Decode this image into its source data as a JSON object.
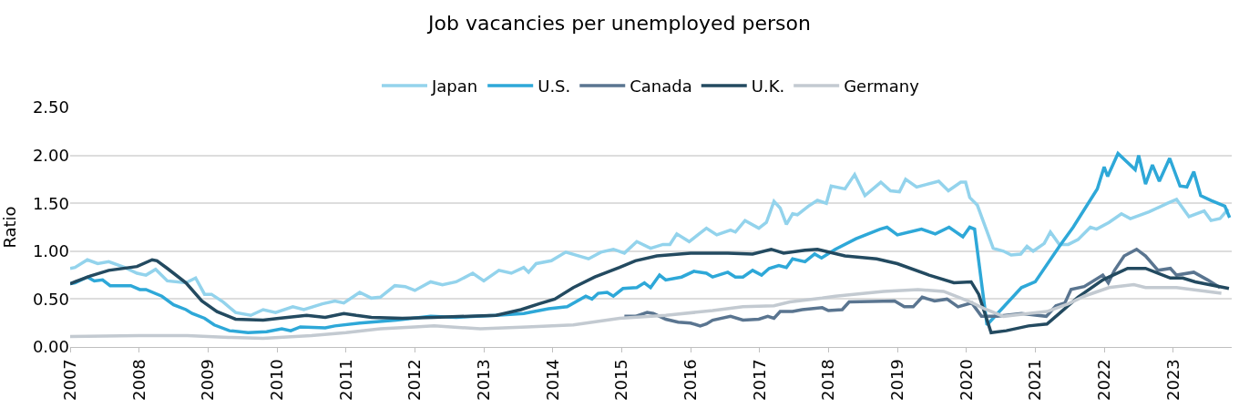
{
  "chart_data": {
    "type": "line",
    "title": "Job vacancies per unemployed person",
    "ylabel": "Ratio",
    "xlim": [
      2007,
      2023.85
    ],
    "xticks": [
      2007,
      2008,
      2009,
      2010,
      2011,
      2012,
      2013,
      2014,
      2015,
      2016,
      2017,
      2018,
      2019,
      2020,
      2021,
      2022,
      2023
    ],
    "ylim": [
      0,
      2.5
    ],
    "yticks": [
      {
        "value": 0,
        "label": "0.00"
      },
      {
        "value": 0.5,
        "label": "0.50"
      },
      {
        "value": 1,
        "label": "1.00"
      },
      {
        "value": 1.5,
        "label": "1.50"
      },
      {
        "value": 2,
        "label": "2.00"
      },
      {
        "value": 2.5,
        "label": "2.50"
      }
    ],
    "grid": "y",
    "legend": "top",
    "marker": "none",
    "line_style": "solid",
    "series": [
      {
        "name": "Japan",
        "color": "#93d3ec",
        "x": [
          2007.0,
          2007.07,
          2007.25,
          2007.4,
          2007.56,
          2007.79,
          2007.97,
          2008.1,
          2008.24,
          2008.41,
          2008.68,
          2008.82,
          2008.95,
          2009.05,
          2009.22,
          2009.4,
          2009.62,
          2009.8,
          2009.98,
          2010.23,
          2010.39,
          2010.66,
          2010.84,
          2010.97,
          2011.2,
          2011.37,
          2011.5,
          2011.71,
          2011.86,
          2012.0,
          2012.23,
          2012.4,
          2012.6,
          2012.84,
          2013.0,
          2013.22,
          2013.4,
          2013.58,
          2013.65,
          2013.76,
          2013.98,
          2014.19,
          2014.52,
          2014.7,
          2014.88,
          2015.04,
          2015.22,
          2015.42,
          2015.6,
          2015.7,
          2015.8,
          2015.98,
          2016.23,
          2016.38,
          2016.58,
          2016.65,
          2016.79,
          2016.99,
          2017.1,
          2017.21,
          2017.3,
          2017.39,
          2017.48,
          2017.55,
          2017.71,
          2017.84,
          2017.97,
          2018.04,
          2018.24,
          2018.38,
          2018.53,
          2018.76,
          2018.9,
          2019.03,
          2019.12,
          2019.28,
          2019.6,
          2019.74,
          2019.92,
          2019.99,
          2020.05,
          2020.16,
          2020.39,
          2020.54,
          2020.65,
          2020.79,
          2020.88,
          2020.97,
          2021.13,
          2021.22,
          2021.35,
          2021.48,
          2021.62,
          2021.8,
          2021.89,
          2022.07,
          2022.25,
          2022.38,
          2022.65,
          2022.92,
          2023.05,
          2023.23,
          2023.45,
          2023.55,
          2023.68,
          2023.8
        ],
        "values": [
          0.82,
          0.83,
          0.91,
          0.87,
          0.89,
          0.83,
          0.77,
          0.75,
          0.81,
          0.69,
          0.67,
          0.72,
          0.55,
          0.55,
          0.47,
          0.36,
          0.33,
          0.39,
          0.36,
          0.42,
          0.39,
          0.45,
          0.48,
          0.46,
          0.57,
          0.51,
          0.52,
          0.64,
          0.63,
          0.59,
          0.68,
          0.65,
          0.68,
          0.77,
          0.69,
          0.8,
          0.77,
          0.83,
          0.78,
          0.87,
          0.9,
          0.99,
          0.92,
          0.99,
          1.02,
          0.98,
          1.1,
          1.03,
          1.07,
          1.07,
          1.18,
          1.1,
          1.24,
          1.17,
          1.22,
          1.2,
          1.32,
          1.24,
          1.3,
          1.52,
          1.45,
          1.28,
          1.39,
          1.38,
          1.47,
          1.53,
          1.5,
          1.68,
          1.65,
          1.8,
          1.58,
          1.72,
          1.63,
          1.62,
          1.75,
          1.67,
          1.73,
          1.63,
          1.72,
          1.72,
          1.56,
          1.48,
          1.03,
          1.0,
          0.96,
          0.97,
          1.05,
          1.0,
          1.08,
          1.2,
          1.07,
          1.07,
          1.12,
          1.25,
          1.23,
          1.3,
          1.39,
          1.34,
          1.41,
          1.5,
          1.54,
          1.36,
          1.42,
          1.32,
          1.34,
          1.44
        ]
      },
      {
        "name": "U.S.",
        "color": "#2ea8d8",
        "x": [
          2007.0,
          2007.07,
          2007.25,
          2007.35,
          2007.47,
          2007.58,
          2007.88,
          2008.01,
          2008.1,
          2008.33,
          2008.5,
          2008.68,
          2008.77,
          2008.95,
          2009.09,
          2009.31,
          2009.58,
          2009.85,
          2010.07,
          2010.2,
          2010.34,
          2010.7,
          2010.84,
          2011.2,
          2011.73,
          2012.23,
          2012.6,
          2013.18,
          2013.58,
          2013.94,
          2014.21,
          2014.48,
          2014.57,
          2014.66,
          2014.79,
          2014.88,
          2015.02,
          2015.22,
          2015.33,
          2015.42,
          2015.55,
          2015.64,
          2015.87,
          2016.05,
          2016.23,
          2016.32,
          2016.54,
          2016.65,
          2016.76,
          2016.9,
          2017.03,
          2017.14,
          2017.28,
          2017.39,
          2017.48,
          2017.66,
          2017.8,
          2017.9,
          2018.1,
          2018.4,
          2018.75,
          2018.85,
          2019.0,
          2019.35,
          2019.55,
          2019.75,
          2019.95,
          2020.05,
          2020.12,
          2020.3,
          2020.8,
          2021.0,
          2021.35,
          2021.55,
          2021.9,
          2022.0,
          2022.05,
          2022.2,
          2022.45,
          2022.5,
          2022.6,
          2022.7,
          2022.8,
          2022.95,
          2023.1,
          2023.2,
          2023.3,
          2023.4,
          2023.55,
          2023.75,
          2023.82
        ],
        "values": [
          0.66,
          0.67,
          0.73,
          0.69,
          0.7,
          0.64,
          0.64,
          0.6,
          0.6,
          0.53,
          0.44,
          0.39,
          0.35,
          0.3,
          0.23,
          0.17,
          0.15,
          0.16,
          0.19,
          0.17,
          0.21,
          0.2,
          0.22,
          0.25,
          0.28,
          0.32,
          0.31,
          0.33,
          0.35,
          0.4,
          0.42,
          0.53,
          0.5,
          0.56,
          0.57,
          0.53,
          0.61,
          0.62,
          0.67,
          0.62,
          0.75,
          0.7,
          0.73,
          0.79,
          0.77,
          0.73,
          0.78,
          0.73,
          0.73,
          0.8,
          0.75,
          0.82,
          0.85,
          0.83,
          0.92,
          0.89,
          0.97,
          0.93,
          1.02,
          1.13,
          1.23,
          1.25,
          1.17,
          1.23,
          1.18,
          1.25,
          1.15,
          1.25,
          1.23,
          0.23,
          0.62,
          0.68,
          1.05,
          1.25,
          1.65,
          1.88,
          1.78,
          2.02,
          1.85,
          2.0,
          1.7,
          1.9,
          1.73,
          1.97,
          1.68,
          1.67,
          1.83,
          1.58,
          1.53,
          1.47,
          1.35
        ]
      },
      {
        "name": "Canada",
        "color": "#5a7590",
        "x": [
          2015.04,
          2015.2,
          2015.37,
          2015.46,
          2015.64,
          2015.82,
          2016.0,
          2016.14,
          2016.23,
          2016.32,
          2016.58,
          2016.76,
          2016.99,
          2017.12,
          2017.21,
          2017.3,
          2017.48,
          2017.62,
          2017.91,
          2018.0,
          2018.2,
          2018.3,
          2018.96,
          2019.1,
          2019.23,
          2019.36,
          2019.54,
          2019.72,
          2019.88,
          2020.08,
          2020.22,
          2020.45,
          2020.8,
          2021.16,
          2021.3,
          2021.43,
          2021.52,
          2021.71,
          2021.98,
          2022.06,
          2022.15,
          2022.29,
          2022.47,
          2022.6,
          2022.78,
          2022.96,
          2023.05,
          2023.3,
          2023.5,
          2023.68
        ],
        "values": [
          0.32,
          0.32,
          0.36,
          0.35,
          0.29,
          0.26,
          0.25,
          0.22,
          0.24,
          0.28,
          0.32,
          0.28,
          0.29,
          0.32,
          0.3,
          0.37,
          0.37,
          0.39,
          0.41,
          0.38,
          0.39,
          0.47,
          0.48,
          0.42,
          0.42,
          0.52,
          0.48,
          0.5,
          0.42,
          0.46,
          0.32,
          0.32,
          0.35,
          0.32,
          0.43,
          0.46,
          0.6,
          0.63,
          0.75,
          0.67,
          0.8,
          0.95,
          1.02,
          0.95,
          0.8,
          0.82,
          0.75,
          0.78,
          0.7,
          0.62
        ]
      },
      {
        "name": "U.K.",
        "color": "#234a60",
        "x": [
          2007.0,
          2007.07,
          2007.29,
          2007.56,
          2007.97,
          2008.19,
          2008.26,
          2008.41,
          2008.68,
          2008.91,
          2009.13,
          2009.4,
          2009.8,
          2010.03,
          2010.43,
          2010.7,
          2010.97,
          2011.15,
          2011.37,
          2011.82,
          2012.27,
          2013.18,
          2013.54,
          2013.8,
          2014.03,
          2014.3,
          2014.61,
          2014.97,
          2015.2,
          2015.51,
          2016.0,
          2016.54,
          2016.9,
          2017.17,
          2017.35,
          2017.66,
          2017.84,
          2018.24,
          2018.7,
          2019.0,
          2019.46,
          2019.82,
          2020.07,
          2020.18,
          2020.27,
          2020.36,
          2020.58,
          2020.9,
          2021.17,
          2021.35,
          2021.62,
          2021.98,
          2022.34,
          2022.6,
          2022.96,
          2023.14,
          2023.32,
          2023.81
        ],
        "values": [
          0.66,
          0.68,
          0.74,
          0.8,
          0.84,
          0.91,
          0.9,
          0.82,
          0.67,
          0.48,
          0.37,
          0.29,
          0.28,
          0.3,
          0.33,
          0.31,
          0.35,
          0.33,
          0.31,
          0.3,
          0.31,
          0.33,
          0.39,
          0.45,
          0.5,
          0.62,
          0.73,
          0.83,
          0.9,
          0.95,
          0.98,
          0.98,
          0.97,
          1.02,
          0.98,
          1.01,
          1.02,
          0.95,
          0.92,
          0.87,
          0.75,
          0.67,
          0.68,
          0.55,
          0.35,
          0.15,
          0.17,
          0.22,
          0.24,
          0.35,
          0.52,
          0.7,
          0.82,
          0.82,
          0.72,
          0.72,
          0.68,
          0.61
        ]
      },
      {
        "name": "Germany",
        "color": "#c3cad1",
        "x": [
          2007.0,
          2008.0,
          2008.7,
          2009.3,
          2009.8,
          2010.5,
          2011.0,
          2011.5,
          2012.0,
          2012.28,
          2012.95,
          2013.63,
          2014.3,
          2014.97,
          2015.64,
          2016.32,
          2016.76,
          2017.21,
          2017.44,
          2017.91,
          2018.1,
          2018.8,
          2019.3,
          2019.67,
          2020.03,
          2020.26,
          2020.54,
          2020.9,
          2021.17,
          2021.48,
          2021.71,
          2022.07,
          2022.43,
          2022.6,
          2023.05,
          2023.7
        ],
        "values": [
          0.11,
          0.12,
          0.12,
          0.1,
          0.09,
          0.12,
          0.15,
          0.19,
          0.21,
          0.22,
          0.19,
          0.21,
          0.23,
          0.3,
          0.33,
          0.38,
          0.42,
          0.43,
          0.47,
          0.51,
          0.53,
          0.58,
          0.6,
          0.58,
          0.48,
          0.4,
          0.32,
          0.35,
          0.37,
          0.45,
          0.53,
          0.62,
          0.65,
          0.62,
          0.62,
          0.56
        ]
      }
    ]
  }
}
